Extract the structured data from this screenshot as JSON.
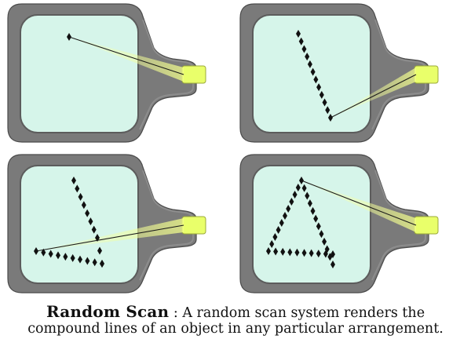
{
  "caption": {
    "title": "Random Scan",
    "separator": " : ",
    "line1_rest": "A random scan system renders the",
    "line2": "compound lines of an object in any particular arrangement."
  },
  "colors": {
    "tube_body": "#7a7a7a",
    "tube_inner": "#5e5e5e",
    "screen": "#d6f5ea",
    "gun": "#e9ff6a",
    "beam": "#f7ffb0",
    "dot": "#111111"
  },
  "panels": [
    {
      "id": "one-line-started"
    },
    {
      "id": "diagonal-line-drawn"
    },
    {
      "id": "triangle-lines-partial"
    },
    {
      "id": "triangle-complete"
    }
  ]
}
